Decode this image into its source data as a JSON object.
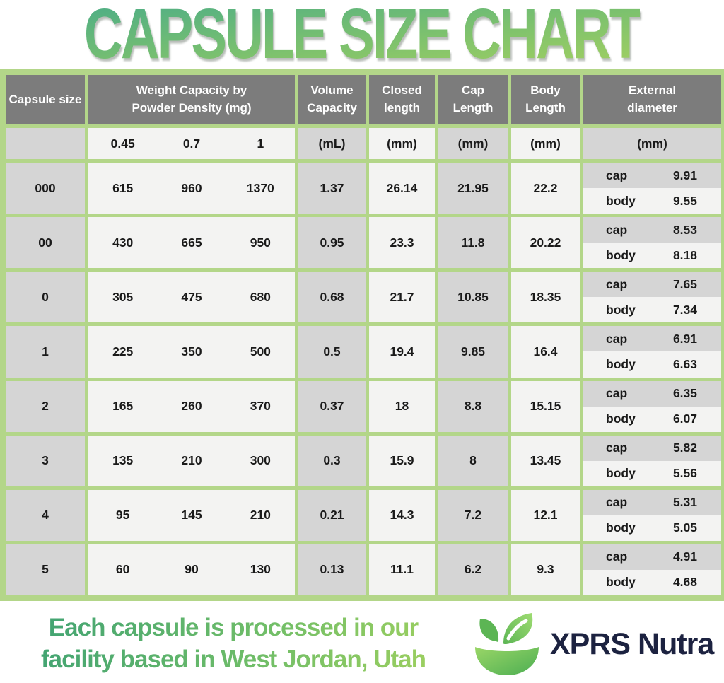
{
  "title": "CAPSULE SIZE CHART",
  "colors": {
    "table_border_green": "#b3d689",
    "header_gray": "#7c7c7c",
    "cell_gray": "#d5d5d5",
    "cell_white": "#f3f3f2",
    "title_gradient_top": "#4fae85",
    "title_gradient_bottom": "#a7d25f",
    "brand_navy": "#1c2240"
  },
  "chart_data": {
    "type": "table",
    "title": "CAPSULE SIZE CHART",
    "columns": [
      {
        "key": "size",
        "header": "Capsule size",
        "unit": "",
        "shade": "gray"
      },
      {
        "key": "weight",
        "header": "Weight Capacity by\nPowder Density (mg)",
        "unit": [
          "0.45",
          "0.7",
          "1"
        ],
        "shade": "white"
      },
      {
        "key": "volume",
        "header": "Volume\nCapacity",
        "unit": "(mL)",
        "shade": "gray"
      },
      {
        "key": "closed",
        "header": "Closed\nlength",
        "unit": "(mm)",
        "shade": "white"
      },
      {
        "key": "cap_len",
        "header": "Cap\nLength",
        "unit": "(mm)",
        "shade": "gray"
      },
      {
        "key": "body_len",
        "header": "Body\nLength",
        "unit": "(mm)",
        "shade": "white"
      },
      {
        "key": "external",
        "header": "External\ndiameter",
        "unit": "(mm)",
        "shade": "gray"
      }
    ],
    "sub_labels": {
      "cap": "cap",
      "body": "body"
    },
    "rows": [
      {
        "size": "000",
        "weight": [
          "615",
          "960",
          "1370"
        ],
        "volume": "1.37",
        "closed": "26.14",
        "cap_len": "21.95",
        "body_len": "22.2",
        "ext_cap": "9.91",
        "ext_body": "9.55"
      },
      {
        "size": "00",
        "weight": [
          "430",
          "665",
          "950"
        ],
        "volume": "0.95",
        "closed": "23.3",
        "cap_len": "11.8",
        "body_len": "20.22",
        "ext_cap": "8.53",
        "ext_body": "8.18"
      },
      {
        "size": "0",
        "weight": [
          "305",
          "475",
          "680"
        ],
        "volume": "0.68",
        "closed": "21.7",
        "cap_len": "10.85",
        "body_len": "18.35",
        "ext_cap": "7.65",
        "ext_body": "7.34"
      },
      {
        "size": "1",
        "weight": [
          "225",
          "350",
          "500"
        ],
        "volume": "0.5",
        "closed": "19.4",
        "cap_len": "9.85",
        "body_len": "16.4",
        "ext_cap": "6.91",
        "ext_body": "6.63"
      },
      {
        "size": "2",
        "weight": [
          "165",
          "260",
          "370"
        ],
        "volume": "0.37",
        "closed": "18",
        "cap_len": "8.8",
        "body_len": "15.15",
        "ext_cap": "6.35",
        "ext_body": "6.07"
      },
      {
        "size": "3",
        "weight": [
          "135",
          "210",
          "300"
        ],
        "volume": "0.3",
        "closed": "15.9",
        "cap_len": "8",
        "body_len": "13.45",
        "ext_cap": "5.82",
        "ext_body": "5.56"
      },
      {
        "size": "4",
        "weight": [
          "95",
          "145",
          "210"
        ],
        "volume": "0.21",
        "closed": "14.3",
        "cap_len": "7.2",
        "body_len": "12.1",
        "ext_cap": "5.31",
        "ext_body": "5.05"
      },
      {
        "size": "5",
        "weight": [
          "60",
          "90",
          "130"
        ],
        "volume": "0.13",
        "closed": "11.1",
        "cap_len": "6.2",
        "body_len": "9.3",
        "ext_cap": "4.91",
        "ext_body": "4.68"
      }
    ]
  },
  "footer": {
    "note": "Each capsule is processed in our\nfacility based in West Jordan, Utah",
    "brand": "XPRS Nutra"
  }
}
